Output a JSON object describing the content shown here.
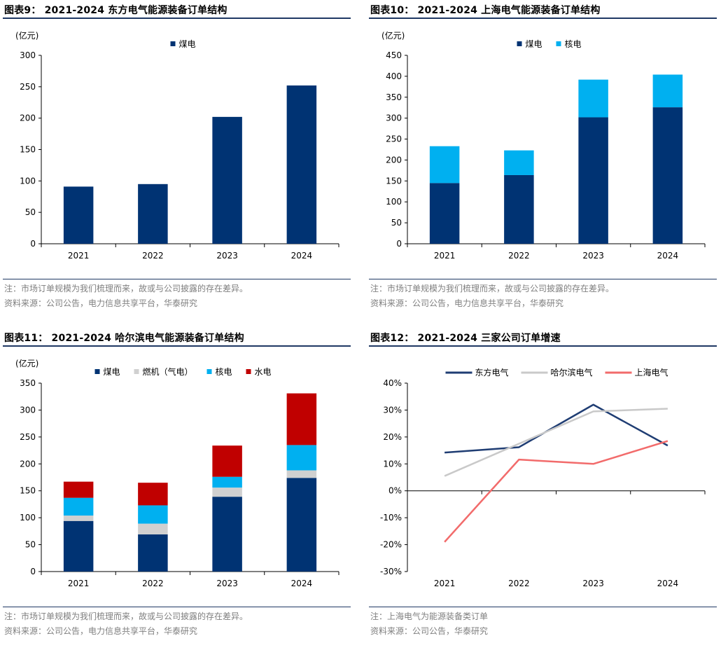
{
  "colors": {
    "navy": "#003373",
    "cyan": "#00b0f0",
    "gray": "#d0d0d0",
    "red": "#c00000",
    "line_dongfang": "#1f3d73",
    "line_harbin": "#c9c9c9",
    "line_shanghai": "#f26b6b"
  },
  "charts": [
    {
      "title": "图表9：  2021-2024 东方电气能源装备订单结构",
      "note": "注：市场订单规模为我们梳理而来，故或与公司披露的存在差异。",
      "source": "资料来源：公司公告，电力信息共享平台，华泰研究"
    },
    {
      "title": "图表10：  2021-2024 上海电气能源装备订单结构",
      "note": "注：市场订单规模为我们梳理而来，故或与公司披露的存在差异。",
      "source": "资料来源：公司公告，电力信息共享平台，华泰研究"
    },
    {
      "title": "图表11：  2021-2024 哈尔滨电气能源装备订单结构",
      "note": "注：市场订单规模为我们梳理而来，故或与公司披露的存在差异。",
      "source": "资料来源：公司公告，电力信息共享平台，华泰研究"
    },
    {
      "title": "图表12：  2021-2024 三家公司订单增速",
      "note": "注：上海电气为能源装备类订单",
      "source": "资料来源：公司公告，华泰研究"
    }
  ],
  "chart_data": [
    {
      "type": "bar",
      "title": "2021-2024 东方电气能源装备订单结构",
      "ylabel": "(亿元)",
      "categories": [
        "2021",
        "2022",
        "2023",
        "2024"
      ],
      "yticks": [
        0,
        50,
        100,
        150,
        200,
        250,
        300
      ],
      "ylim": [
        0,
        300
      ],
      "legend_position": "top",
      "series": [
        {
          "name": "煤电",
          "color": "#003373",
          "values": [
            91,
            95,
            202,
            252
          ]
        }
      ]
    },
    {
      "type": "bar",
      "stacked": true,
      "title": "2021-2024 上海电气能源装备订单结构",
      "ylabel": "(亿元)",
      "categories": [
        "2021",
        "2022",
        "2023",
        "2024"
      ],
      "yticks": [
        0,
        50,
        100,
        150,
        200,
        250,
        300,
        350,
        400,
        450
      ],
      "ylim": [
        0,
        450
      ],
      "legend_position": "top",
      "series": [
        {
          "name": "煤电",
          "color": "#003373",
          "values": [
            145,
            164,
            302,
            326
          ]
        },
        {
          "name": "核电",
          "color": "#00b0f0",
          "values": [
            88,
            59,
            90,
            78
          ]
        }
      ]
    },
    {
      "type": "bar",
      "stacked": true,
      "title": "2021-2024 哈尔滨电气能源装备订单结构",
      "ylabel": "(亿元)",
      "categories": [
        "2021",
        "2022",
        "2023",
        "2024"
      ],
      "yticks": [
        0,
        50,
        100,
        150,
        200,
        250,
        300,
        350
      ],
      "ylim": [
        0,
        350
      ],
      "legend_position": "top",
      "series": [
        {
          "name": "煤电",
          "color": "#003373",
          "values": [
            94,
            69,
            139,
            174
          ]
        },
        {
          "name": "燃机（气电）",
          "color": "#d0d0d0",
          "values": [
            10,
            20,
            17,
            14
          ]
        },
        {
          "name": "核电",
          "color": "#00b0f0",
          "values": [
            33,
            34,
            20,
            47
          ]
        },
        {
          "name": "水电",
          "color": "#c00000",
          "values": [
            30,
            42,
            58,
            96
          ]
        }
      ]
    },
    {
      "type": "line",
      "title": "2021-2024 三家公司订单增速",
      "categories": [
        "2021",
        "2022",
        "2023",
        "2024"
      ],
      "yticks": [
        -30,
        -20,
        -10,
        0,
        10,
        20,
        30,
        40
      ],
      "ytick_suffix": "%",
      "ylim": [
        -30,
        40
      ],
      "legend_position": "top",
      "series": [
        {
          "name": "东方电气",
          "color": "#1f3d73",
          "values": [
            14.2,
            16.2,
            32.0,
            16.8
          ]
        },
        {
          "name": "哈尔滨电气",
          "color": "#c9c9c9",
          "values": [
            5.5,
            17.5,
            29.5,
            30.5
          ]
        },
        {
          "name": "上海电气",
          "color": "#f26b6b",
          "values": [
            -19.0,
            11.6,
            10.0,
            18.5
          ]
        }
      ]
    }
  ]
}
